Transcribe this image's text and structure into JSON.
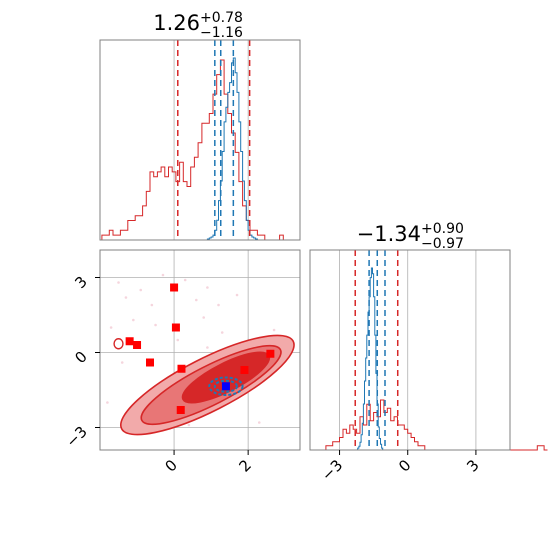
{
  "chart_data": [
    {
      "type": "histogram",
      "panel": "top-left marginal",
      "title": {
        "value": "1.26",
        "upper": "+0.78",
        "lower": "−1.16"
      },
      "xlim": [
        -2,
        3.4
      ],
      "grid": true,
      "red_quantile_lines": [
        0.1,
        2.04
      ],
      "blue_quantile_lines": [
        1.1,
        1.6
      ],
      "red_hist": {
        "bin_start": -1.95,
        "bin_width": 0.1,
        "counts": [
          1,
          1,
          2,
          1,
          1,
          2,
          2,
          4,
          4,
          5,
          5,
          7,
          10,
          14,
          13,
          14,
          15,
          13,
          15,
          14,
          12,
          16,
          12,
          11,
          15,
          17,
          20,
          24,
          24,
          26,
          30,
          34,
          37,
          30,
          26,
          22,
          18,
          12,
          7,
          4,
          2,
          2,
          1,
          1,
          0,
          0,
          0,
          0,
          1
        ]
      },
      "blue_hist": {
        "bin_start": 0.8,
        "bin_width": 0.05,
        "counts": [
          0,
          0,
          1,
          2,
          3,
          5,
          10,
          20,
          40,
          60,
          90,
          120,
          135,
          150,
          160,
          180,
          185,
          170,
          150,
          120,
          90,
          60,
          40,
          20,
          10,
          5,
          3,
          2,
          1,
          0
        ]
      }
    },
    {
      "type": "histogram",
      "panel": "bottom-right marginal",
      "title": {
        "value": "−1.34",
        "upper": "+0.90",
        "lower": "−0.97"
      },
      "xlim": [
        -4.3,
        4.5
      ],
      "xticks": [
        "−3",
        "0",
        "3"
      ],
      "grid": true,
      "red_quantile_lines": [
        -2.31,
        -0.44
      ],
      "blue_quantile_lines": [
        -1.7,
        -1.0
      ],
      "red_hist": {
        "bin_start": -4.2,
        "bin_width": 0.15,
        "counts": [
          0,
          0,
          0,
          0,
          1,
          1,
          2,
          2,
          3,
          5,
          4,
          6,
          5,
          4,
          8,
          6,
          11,
          7,
          9,
          8,
          12,
          9,
          10,
          7,
          8,
          6,
          6,
          5,
          4,
          3,
          2,
          1,
          1,
          0,
          0,
          0,
          0,
          0,
          0,
          0,
          0,
          0,
          0,
          0,
          0,
          0,
          0,
          0,
          0,
          0,
          0,
          0,
          0,
          0,
          0,
          0,
          0,
          0,
          0,
          0,
          0,
          0,
          0,
          0,
          0,
          0,
          1,
          1,
          0
        ]
      },
      "blue_hist": {
        "bin_start": -2.2,
        "bin_width": 0.05,
        "counts": [
          1,
          2,
          4,
          8,
          14,
          24,
          36,
          48,
          60,
          72,
          80,
          90,
          95,
          92,
          80,
          60,
          40,
          24,
          12,
          6,
          3,
          1
        ]
      }
    },
    {
      "type": "scatter",
      "panel": "bottom-left joint",
      "xlim": [
        -2,
        3.4
      ],
      "ylim": [
        -3.9,
        4.1
      ],
      "xticks": [
        "0",
        "2"
      ],
      "yticks": [
        "3",
        "0",
        "−3"
      ],
      "grid": true,
      "contours": {
        "red_filled": [
          {
            "cx": 0.9,
            "cy": -1.3,
            "rx": 2.6,
            "ry": 0.75,
            "angle": 27
          },
          {
            "cx": 1.0,
            "cy": -1.3,
            "rx": 2.1,
            "ry": 0.55,
            "angle": 27
          },
          {
            "cx": 1.4,
            "cy": -1.0,
            "rx": 1.3,
            "ry": 0.4,
            "angle": 27
          }
        ],
        "blue": [
          {
            "cx": 1.4,
            "cy": -1.35,
            "rx": 0.45,
            "ry": 0.35,
            "angle": 0
          },
          {
            "cx": 1.4,
            "cy": -1.35,
            "rx": 0.3,
            "ry": 0.22,
            "angle": 0
          }
        ],
        "red_small_left": {
          "cx": -1.5,
          "cy": 0.35,
          "rx": 0.12,
          "ry": 0.2
        }
      },
      "red_squares": [
        {
          "x": 0.0,
          "y": 2.6
        },
        {
          "x": 0.05,
          "y": 1.0
        },
        {
          "x": -1.2,
          "y": 0.45
        },
        {
          "x": -1.0,
          "y": 0.3
        },
        {
          "x": -0.65,
          "y": -0.4
        },
        {
          "x": 0.2,
          "y": -0.65
        },
        {
          "x": 0.18,
          "y": -2.3
        },
        {
          "x": 2.6,
          "y": -0.05
        },
        {
          "x": 1.9,
          "y": -0.7
        }
      ],
      "blue_square": {
        "x": 1.4,
        "y": -1.35
      },
      "faint_points": [
        {
          "x": -1.5,
          "y": 2.8
        },
        {
          "x": -1.3,
          "y": 2.2
        },
        {
          "x": -0.9,
          "y": 2.5
        },
        {
          "x": -0.6,
          "y": 1.9
        },
        {
          "x": 0.6,
          "y": 2.1
        },
        {
          "x": 0.9,
          "y": 2.6
        },
        {
          "x": 1.2,
          "y": 1.9
        },
        {
          "x": -1.1,
          "y": 1.3
        },
        {
          "x": 0.3,
          "y": 2.9
        },
        {
          "x": -0.3,
          "y": 3.1
        },
        {
          "x": 1.3,
          "y": 0.8
        },
        {
          "x": -1.7,
          "y": 1.0
        },
        {
          "x": 0.8,
          "y": 1.4
        },
        {
          "x": -0.5,
          "y": 1.1
        },
        {
          "x": 1.7,
          "y": 2.3
        },
        {
          "x": -1.4,
          "y": -0.4
        },
        {
          "x": 0.9,
          "y": 0.2
        },
        {
          "x": -0.2,
          "y": -1.6
        },
        {
          "x": 0.4,
          "y": -2.9
        },
        {
          "x": -0.8,
          "y": -2.6
        },
        {
          "x": 2.3,
          "y": -2.8
        },
        {
          "x": -1.8,
          "y": -2.0
        },
        {
          "x": 2.7,
          "y": 0.9
        },
        {
          "x": 0.1,
          "y": 0.5
        }
      ],
      "colors": {
        "red_line": "#d62728",
        "red_fill_outer": "#f2aaaa",
        "red_fill_mid": "#e87676",
        "red_fill_inner": "#d62728",
        "blue": "#1f77b4",
        "square_red": "#ff0000",
        "square_blue": "#0000ff",
        "faint_points": "#f5d5dd",
        "grid": "#b0b0b0",
        "frame": "#808080"
      }
    }
  ]
}
